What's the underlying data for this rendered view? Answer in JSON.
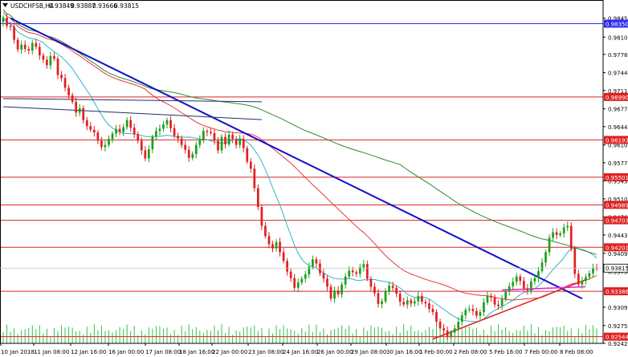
{
  "chart_data": {
    "type": "candlestick",
    "symbol": "USDCHFSB,H4",
    "ohlc": [
      "0.93849",
      "0.93887",
      "0.93666",
      "0.93815"
    ],
    "y_ticks": [
      "0.98450",
      "0.98100",
      "0.97780",
      "0.97440",
      "0.97110",
      "0.96770",
      "0.96440",
      "0.96100",
      "0.95770",
      "0.95430",
      "0.95100",
      "0.94760",
      "0.94430",
      "0.94090",
      "0.93750",
      "0.93410",
      "0.93090",
      "0.92750",
      "0.92420"
    ],
    "x_labels": [
      "10 Jan 2018",
      "11 Jan 08:00",
      "12 Jan 16:00",
      "16 Jan 00:00",
      "17 Jan 08:00",
      "18 Jan 16:00",
      "22 Jan 00:00",
      "23 Jan 08:00",
      "24 Jan 16:00",
      "26 Jan 00:00",
      "29 Jan 08:00",
      "30 Jan 16:00",
      "1 Feb 00:00",
      "2 Feb 08:00",
      "5 Feb 16:00",
      "7 Feb 00:00",
      "8 Feb 08:00"
    ],
    "ylim": [
      0.9242,
      0.9858
    ],
    "levels": [
      {
        "value": 0.9835,
        "label": "0.98350",
        "color": "#2a2af0"
      },
      {
        "value": 0.9699,
        "label": "0.96990",
        "color": "#e02020"
      },
      {
        "value": 0.96193,
        "label": "0.96193",
        "color": "#e02020"
      },
      {
        "value": 0.95501,
        "label": "0.95501",
        "color": "#e02020"
      },
      {
        "value": 0.94989,
        "label": "0.94989",
        "color": "#e02020"
      },
      {
        "value": 0.94703,
        "label": "0.94703",
        "color": "#e02020"
      },
      {
        "value": 0.94201,
        "label": "0.94201",
        "color": "#e02020"
      },
      {
        "value": 0.93386,
        "label": "0.93386",
        "color": "#e02020"
      },
      {
        "value": 0.92544,
        "label": "0.92544",
        "color": "#e02020"
      }
    ],
    "current_price": {
      "value": 0.93815,
      "label": "0.93815"
    },
    "bull_color": "#1aa01a",
    "bear_color": "#e02020",
    "ma_colors": {
      "fast": "#2fb5c8",
      "mid": "#e23a3a",
      "slow": "#2e8b2e"
    },
    "trend_colors": {
      "blue": "#1010cc",
      "red": "#e02020",
      "magenta": "#e020e0",
      "navy": "#20306a"
    },
    "closes": [
      0.9846,
      0.9831,
      0.9829,
      0.9805,
      0.9787,
      0.9796,
      0.9788,
      0.9785,
      0.9799,
      0.9792,
      0.9776,
      0.9768,
      0.9758,
      0.9775,
      0.977,
      0.974,
      0.9734,
      0.9716,
      0.9702,
      0.969,
      0.967,
      0.9678,
      0.9656,
      0.9645,
      0.9638,
      0.9633,
      0.9618,
      0.9606,
      0.961,
      0.9621,
      0.9631,
      0.964,
      0.9634,
      0.9643,
      0.9656,
      0.9642,
      0.963,
      0.9618,
      0.96,
      0.9585,
      0.9602,
      0.9625,
      0.9636,
      0.964,
      0.9648,
      0.9656,
      0.9641,
      0.9627,
      0.9622,
      0.961,
      0.9601,
      0.9586,
      0.9593,
      0.961,
      0.962,
      0.9636,
      0.9634,
      0.9632,
      0.9618,
      0.96,
      0.9625,
      0.9611,
      0.9629,
      0.9621,
      0.961,
      0.9621,
      0.9604,
      0.9579,
      0.9566,
      0.953,
      0.9495,
      0.946,
      0.9441,
      0.9426,
      0.9418,
      0.943,
      0.9411,
      0.9395,
      0.9375,
      0.9363,
      0.9345,
      0.9355,
      0.9362,
      0.937,
      0.9384,
      0.9398,
      0.939,
      0.9372,
      0.9362,
      0.9347,
      0.9325,
      0.934,
      0.9333,
      0.9351,
      0.9366,
      0.9377,
      0.9374,
      0.9371,
      0.9383,
      0.9389,
      0.9362,
      0.9347,
      0.9335,
      0.9315,
      0.932,
      0.9339,
      0.9349,
      0.9345,
      0.9334,
      0.9319,
      0.9314,
      0.9322,
      0.9316,
      0.932,
      0.933,
      0.9319,
      0.9316,
      0.9306,
      0.93,
      0.9282,
      0.927,
      0.9266,
      0.9255,
      0.9262,
      0.927,
      0.9282,
      0.9294,
      0.9304,
      0.9306,
      0.9302,
      0.9293,
      0.93,
      0.9318,
      0.933,
      0.9327,
      0.9314,
      0.9311,
      0.9324,
      0.9339,
      0.9348,
      0.9356,
      0.9366,
      0.9358,
      0.9344,
      0.934,
      0.9357,
      0.9363,
      0.9376,
      0.9392,
      0.9411,
      0.9438,
      0.9448,
      0.9443,
      0.9446,
      0.9457,
      0.946,
      0.9418,
      0.9371,
      0.9351,
      0.9358,
      0.9365,
      0.9372,
      0.9382,
      0.9381
    ]
  }
}
